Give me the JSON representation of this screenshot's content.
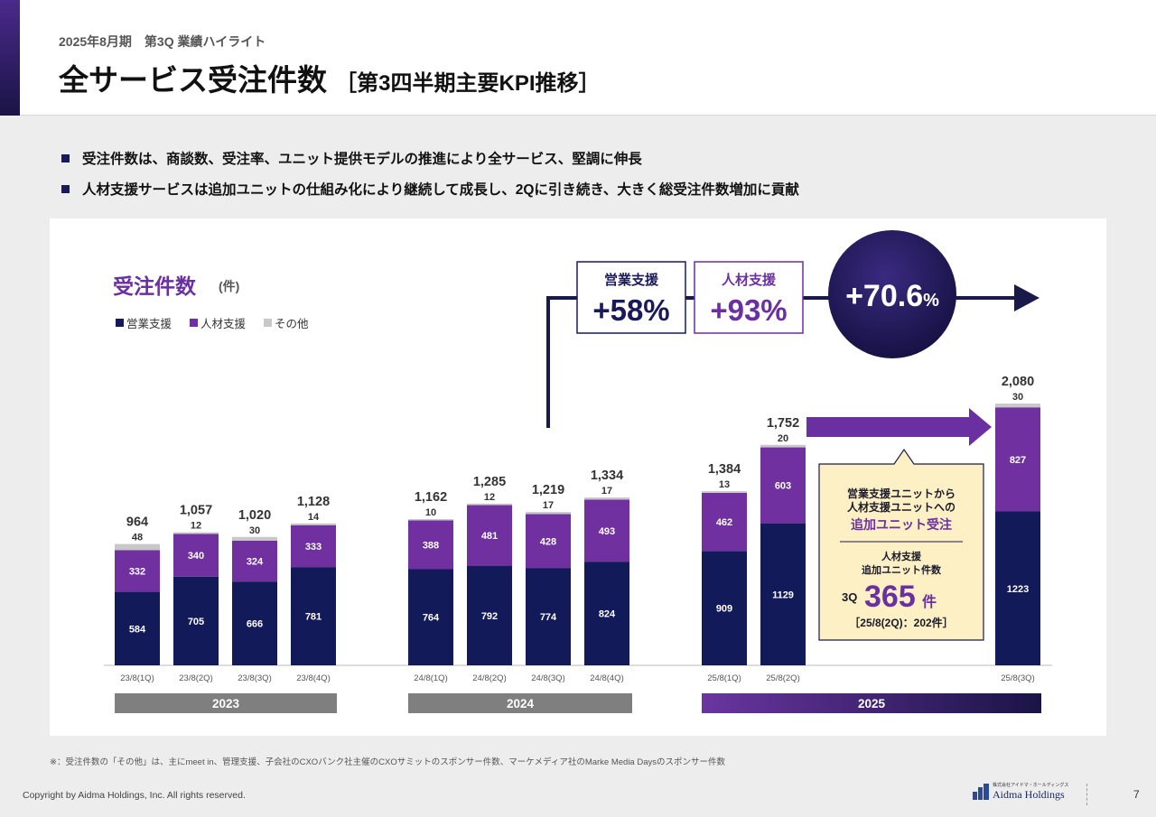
{
  "header": {
    "subtitle": "2025年8月期　第3Q 業績ハイライト",
    "title": "全サービス受注件数",
    "title_sub": "［第3四半期主要KPI推移］"
  },
  "bullets": [
    "受注件数は、商談数、受注率、ユニット提供モデルの推進により全サービス、堅調に伸長",
    "人材支援サービスは追加ユニットの仕組み化により継続して成長し、2Qに引き続き、大きく総受注件数増加に貢献"
  ],
  "chart_data": {
    "type": "bar",
    "stacked": true,
    "title": "受注件数",
    "unit": "(件)",
    "categories": [
      "23/8(1Q)",
      "23/8(2Q)",
      "23/8(3Q)",
      "23/8(4Q)",
      "24/8(1Q)",
      "24/8(2Q)",
      "24/8(3Q)",
      "24/8(4Q)",
      "25/8(1Q)",
      "25/8(2Q)",
      "25/8(3Q)"
    ],
    "series": [
      {
        "name": "営業支援",
        "color": "#121a5a",
        "values": [
          584,
          705,
          666,
          781,
          764,
          792,
          774,
          824,
          909,
          1129,
          1223
        ]
      },
      {
        "name": "人材支援",
        "color": "#7030a0",
        "values": [
          332,
          340,
          324,
          333,
          388,
          481,
          428,
          493,
          462,
          603,
          827
        ]
      },
      {
        "name": "その他",
        "color": "#c8c8c8",
        "values": [
          48,
          12,
          30,
          14,
          10,
          12,
          17,
          17,
          13,
          20,
          30
        ]
      }
    ],
    "totals": [
      "964",
      "1,057",
      "1,020",
      "1,128",
      "1,162",
      "1,285",
      "1,219",
      "1,334",
      "1,384",
      "1,752",
      "2,080"
    ],
    "legend_placement": "top-left",
    "years": [
      {
        "label": "2023",
        "color": "#7f7f7f"
      },
      {
        "label": "2024",
        "color": "#7f7f7f"
      },
      {
        "label": "2025",
        "color": "#5a2a90"
      }
    ],
    "growth": {
      "sales_label": "営業支援",
      "sales_value": "+58%",
      "hr_label": "人材支援",
      "hr_value": "+93%",
      "total_value": "+70.6",
      "total_unit": "%"
    },
    "callout": {
      "line1": "営業支援ユニットから",
      "line2": "人材支援ユニットへの",
      "highlight": "追加ユニット受注",
      "sub1": "人材支援",
      "sub2": "追加ユニット件数",
      "q_label": "3Q",
      "big_value": "365",
      "big_unit": "件",
      "note": "［25/8(2Q)：202件］"
    }
  },
  "footnote": "※：受注件数の「その他」は、主にmeet in、管理支援、子会社のCXOバンク社主催のCXOサミットのスポンサー件数、マーケメディア社のMarke Media Daysのスポンサー件数",
  "footer": {
    "copyright": "Copyright by Aidma Holdings, Inc. All rights reserved.",
    "logo_small": "株式会社アイドマ・ホールディングス",
    "logo_name": "Aidma Holdings",
    "page": "7"
  }
}
